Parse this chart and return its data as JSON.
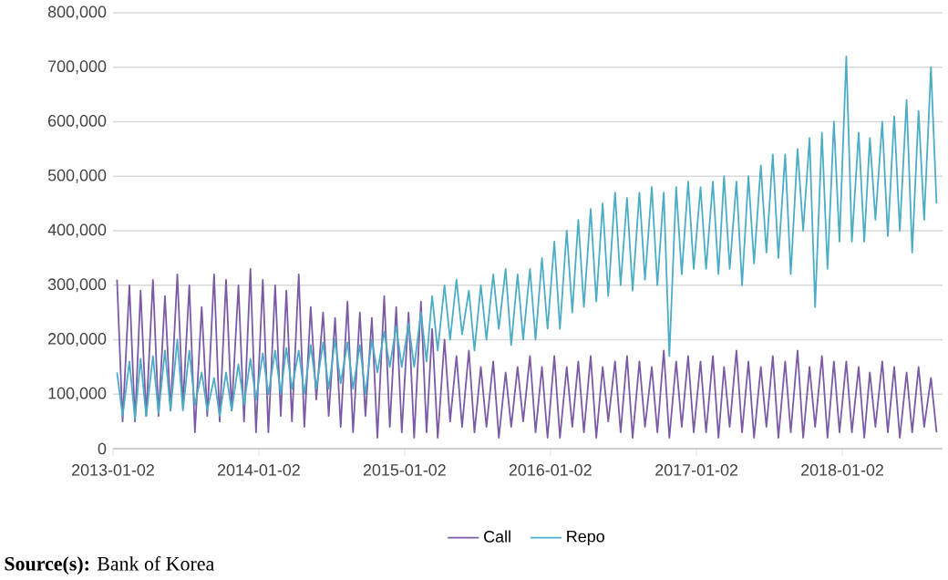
{
  "chart_data": {
    "type": "line",
    "annotations": [
      "**Source(s):** Bank of Korea"
    ],
    "x": [
      "2013-01-12",
      "2013-01-26",
      "2013-02-12",
      "2013-02-26",
      "2013-03-12",
      "2013-03-26",
      "2013-04-12",
      "2013-04-26",
      "2013-05-12",
      "2013-05-26",
      "2013-06-12",
      "2013-06-26",
      "2013-07-12",
      "2013-07-26",
      "2013-08-12",
      "2013-08-26",
      "2013-09-12",
      "2013-09-26",
      "2013-10-12",
      "2013-10-26",
      "2013-11-12",
      "2013-11-26",
      "2013-12-12",
      "2013-12-26",
      "2014-01-12",
      "2014-01-26",
      "2014-02-12",
      "2014-02-26",
      "2014-03-12",
      "2014-03-26",
      "2014-04-12",
      "2014-04-26",
      "2014-05-12",
      "2014-05-26",
      "2014-06-12",
      "2014-06-26",
      "2014-07-12",
      "2014-07-26",
      "2014-08-12",
      "2014-08-26",
      "2014-09-12",
      "2014-09-26",
      "2014-10-12",
      "2014-10-26",
      "2014-11-12",
      "2014-11-26",
      "2014-12-12",
      "2014-12-26",
      "2015-01-12",
      "2015-01-26",
      "2015-02-12",
      "2015-02-26",
      "2015-03-12",
      "2015-03-26",
      "2015-04-12",
      "2015-04-26",
      "2015-05-12",
      "2015-05-26",
      "2015-06-12",
      "2015-06-26",
      "2015-07-12",
      "2015-07-26",
      "2015-08-12",
      "2015-08-26",
      "2015-09-12",
      "2015-09-26",
      "2015-10-12",
      "2015-10-26",
      "2015-11-12",
      "2015-11-26",
      "2015-12-12",
      "2015-12-26",
      "2016-01-12",
      "2016-01-26",
      "2016-02-12",
      "2016-02-26",
      "2016-03-12",
      "2016-03-26",
      "2016-04-12",
      "2016-04-26",
      "2016-05-12",
      "2016-05-26",
      "2016-06-12",
      "2016-06-26",
      "2016-07-12",
      "2016-07-26",
      "2016-08-12",
      "2016-08-26",
      "2016-09-12",
      "2016-09-26",
      "2016-10-12",
      "2016-10-26",
      "2016-11-12",
      "2016-11-26",
      "2016-12-12",
      "2016-12-26",
      "2017-01-12",
      "2017-01-26",
      "2017-02-12",
      "2017-02-26",
      "2017-03-12",
      "2017-03-26",
      "2017-04-12",
      "2017-04-26",
      "2017-05-12",
      "2017-05-26",
      "2017-06-12",
      "2017-06-26",
      "2017-07-12",
      "2017-07-26",
      "2017-08-12",
      "2017-08-26",
      "2017-09-12",
      "2017-09-26",
      "2017-10-12",
      "2017-10-26",
      "2017-11-12",
      "2017-11-26",
      "2017-12-12",
      "2017-12-26",
      "2018-01-12",
      "2018-01-26",
      "2018-02-12",
      "2018-02-26",
      "2018-03-12",
      "2018-03-26",
      "2018-04-12",
      "2018-04-26",
      "2018-05-12",
      "2018-05-26",
      "2018-06-12",
      "2018-06-26",
      "2018-07-12",
      "2018-07-26",
      "2018-08-12",
      "2018-08-26"
    ],
    "series": [
      {
        "name": "Call",
        "color": "#7b5aa6",
        "values": [
          310000,
          50000,
          300000,
          50000,
          290000,
          60000,
          310000,
          60000,
          280000,
          70000,
          320000,
          80000,
          300000,
          30000,
          260000,
          60000,
          320000,
          50000,
          310000,
          70000,
          300000,
          50000,
          330000,
          30000,
          310000,
          30000,
          300000,
          60000,
          290000,
          50000,
          320000,
          40000,
          260000,
          90000,
          250000,
          60000,
          240000,
          40000,
          270000,
          30000,
          250000,
          60000,
          240000,
          20000,
          280000,
          40000,
          260000,
          30000,
          250000,
          20000,
          270000,
          30000,
          220000,
          20000,
          200000,
          50000,
          170000,
          40000,
          180000,
          30000,
          150000,
          40000,
          160000,
          20000,
          140000,
          40000,
          150000,
          50000,
          170000,
          30000,
          150000,
          20000,
          170000,
          20000,
          150000,
          40000,
          160000,
          30000,
          170000,
          20000,
          150000,
          50000,
          160000,
          30000,
          170000,
          20000,
          160000,
          40000,
          150000,
          30000,
          180000,
          20000,
          160000,
          40000,
          170000,
          30000,
          160000,
          30000,
          170000,
          20000,
          150000,
          40000,
          180000,
          30000,
          160000,
          20000,
          150000,
          40000,
          170000,
          20000,
          160000,
          30000,
          180000,
          20000,
          150000,
          40000,
          170000,
          20000,
          160000,
          30000,
          160000,
          30000,
          150000,
          20000,
          140000,
          40000,
          160000,
          30000,
          150000,
          20000,
          140000,
          30000,
          150000,
          40000,
          130000,
          30000
        ]
      },
      {
        "name": "Repo",
        "color": "#4bacc6",
        "values": [
          140000,
          60000,
          160000,
          55000,
          165000,
          60000,
          170000,
          65000,
          180000,
          70000,
          200000,
          70000,
          180000,
          80000,
          140000,
          70000,
          130000,
          60000,
          140000,
          70000,
          155000,
          80000,
          165000,
          90000,
          175000,
          100000,
          180000,
          100000,
          185000,
          110000,
          180000,
          100000,
          190000,
          110000,
          195000,
          110000,
          200000,
          120000,
          195000,
          110000,
          190000,
          100000,
          200000,
          140000,
          215000,
          150000,
          225000,
          150000,
          230000,
          150000,
          250000,
          160000,
          280000,
          180000,
          300000,
          200000,
          310000,
          210000,
          290000,
          180000,
          300000,
          200000,
          320000,
          220000,
          330000,
          190000,
          320000,
          200000,
          330000,
          200000,
          350000,
          220000,
          380000,
          220000,
          400000,
          250000,
          420000,
          260000,
          440000,
          270000,
          450000,
          280000,
          470000,
          300000,
          460000,
          290000,
          470000,
          310000,
          480000,
          300000,
          470000,
          170000,
          480000,
          320000,
          490000,
          330000,
          480000,
          330000,
          490000,
          320000,
          500000,
          330000,
          490000,
          300000,
          500000,
          340000,
          520000,
          360000,
          540000,
          350000,
          540000,
          320000,
          550000,
          400000,
          570000,
          260000,
          580000,
          330000,
          600000,
          380000,
          720000,
          380000,
          580000,
          380000,
          570000,
          420000,
          600000,
          390000,
          610000,
          400000,
          640000,
          360000,
          620000,
          420000,
          700000,
          450000
        ]
      }
    ],
    "xlim": [
      "2013-01-02",
      "2018-09-10"
    ],
    "xticks": [
      "2013-01-02",
      "2014-01-02",
      "2015-01-02",
      "2016-01-02",
      "2017-01-02",
      "2018-01-02"
    ],
    "ylim": [
      0,
      800000
    ],
    "yticks": [
      0,
      {
        "value": 100000,
        "label": "100,000"
      },
      {
        "value": 200000,
        "label": "200,000"
      },
      {
        "value": 300000,
        "label": "300,000"
      },
      {
        "value": 400000,
        "label": "400,000"
      },
      {
        "value": 500000,
        "label": "500,000"
      },
      {
        "value": 600000,
        "label": "600,000"
      },
      {
        "value": 700000,
        "label": "700,000"
      },
      {
        "value": 800000,
        "label": "800,000"
      }
    ],
    "grid": "y",
    "legend": "bottom",
    "marker": "none",
    "line_style": "solid"
  }
}
